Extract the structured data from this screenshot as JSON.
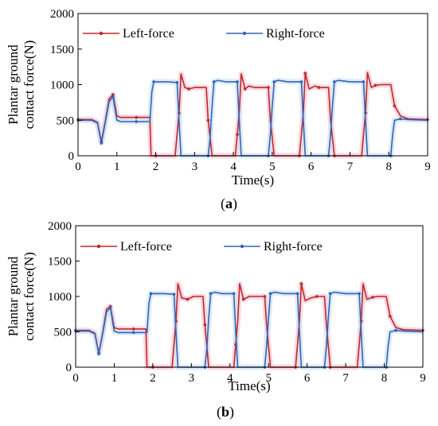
{
  "colors": {
    "left": "#c0282a",
    "right": "#3563b8",
    "shade": "#f7c9d6",
    "shade_blue": "#cfe3f5"
  },
  "chart_data": [
    {
      "type": "line",
      "panel": "a",
      "panel_label_open": "(",
      "panel_label_letter": "a",
      "panel_label_close": ")",
      "xlabel": "Time(s)",
      "ylabel_line1": "Plantar ground",
      "ylabel_line2": "contact force(N)",
      "xlim": [
        0,
        9
      ],
      "ylim": [
        0,
        2000
      ],
      "x_ticks": [
        "0",
        "1",
        "2",
        "3",
        "4",
        "5",
        "6",
        "7",
        "8",
        "9"
      ],
      "y_ticks": [
        "0",
        "500",
        "1000",
        "1500",
        "2000"
      ],
      "legend_placement": "top-left",
      "series": [
        {
          "name": "Left-force",
          "color_key": "left",
          "x": [
            0,
            0.35,
            0.5,
            0.6,
            0.7,
            0.8,
            0.9,
            1.0,
            1.1,
            1.5,
            1.85,
            1.88,
            2.0,
            2.5,
            2.55,
            2.6,
            2.65,
            2.75,
            2.85,
            3.0,
            3.3,
            3.35,
            3.45,
            4.05,
            4.1,
            4.15,
            4.2,
            4.3,
            4.4,
            4.55,
            4.9,
            4.95,
            5.05,
            5.7,
            5.75,
            5.8,
            5.85,
            5.95,
            6.1,
            6.2,
            6.45,
            6.5,
            6.6,
            7.3,
            7.35,
            7.4,
            7.45,
            7.55,
            7.65,
            7.8,
            8.05,
            8.15,
            8.3,
            8.5,
            9
          ],
          "y": [
            510,
            510,
            470,
            200,
            480,
            800,
            860,
            560,
            540,
            540,
            540,
            0,
            0,
            0,
            300,
            600,
            1150,
            960,
            940,
            960,
            960,
            500,
            0,
            0,
            300,
            600,
            1150,
            940,
            980,
            960,
            960,
            500,
            0,
            0,
            300,
            600,
            1160,
            940,
            980,
            960,
            960,
            500,
            0,
            0,
            300,
            600,
            1170,
            960,
            990,
            1000,
            1000,
            700,
            560,
            520,
            510
          ]
        },
        {
          "name": "Right-force",
          "color_key": "right",
          "x": [
            0,
            0.35,
            0.5,
            0.6,
            0.7,
            0.8,
            0.9,
            1.0,
            1.1,
            1.5,
            1.85,
            1.9,
            1.95,
            2.05,
            2.3,
            2.55,
            2.6,
            2.65,
            3.35,
            3.4,
            3.45,
            3.5,
            3.6,
            3.8,
            4.1,
            4.15,
            4.2,
            4.9,
            4.95,
            5.0,
            5.05,
            5.15,
            5.4,
            5.75,
            5.8,
            5.85,
            6.45,
            6.5,
            6.55,
            6.6,
            6.7,
            7.0,
            7.35,
            7.4,
            7.45,
            8.05,
            8.1,
            8.15,
            8.3,
            8.5,
            9
          ],
          "y": [
            500,
            500,
            460,
            180,
            460,
            760,
            830,
            500,
            480,
            480,
            480,
            900,
            1040,
            1040,
            1040,
            1030,
            500,
            0,
            0,
            250,
            700,
            1040,
            1060,
            1040,
            1040,
            500,
            0,
            0,
            300,
            700,
            1040,
            1060,
            1040,
            1040,
            500,
            0,
            0,
            300,
            700,
            1040,
            1060,
            1040,
            1040,
            500,
            0,
            0,
            300,
            500,
            520,
            510,
            500
          ]
        }
      ]
    },
    {
      "type": "line",
      "panel": "b",
      "panel_label_open": "(",
      "panel_label_letter": "b",
      "panel_label_close": ")",
      "xlabel": "Time(s)",
      "ylabel_line1": "Plantar ground",
      "ylabel_line2": "contact force(N)",
      "xlim": [
        0,
        9
      ],
      "ylim": [
        0,
        2000
      ],
      "x_ticks": [
        "0",
        "1",
        "2",
        "3",
        "4",
        "5",
        "6",
        "7",
        "8",
        "9"
      ],
      "y_ticks": [
        "0",
        "500",
        "1000",
        "1500",
        "2000"
      ],
      "legend_placement": "top-left",
      "series": [
        {
          "name": "Left-force",
          "color_key": "left",
          "x": [
            0,
            0.35,
            0.5,
            0.6,
            0.7,
            0.8,
            0.9,
            1.0,
            1.1,
            1.5,
            1.82,
            1.85,
            2.0,
            2.5,
            2.55,
            2.6,
            2.65,
            2.75,
            2.9,
            3.05,
            3.3,
            3.35,
            3.45,
            4.1,
            4.15,
            4.2,
            4.25,
            4.35,
            4.5,
            4.65,
            4.9,
            4.95,
            5.05,
            5.7,
            5.75,
            5.8,
            5.85,
            5.95,
            6.1,
            6.25,
            6.45,
            6.5,
            6.6,
            7.3,
            7.35,
            7.4,
            7.45,
            7.55,
            7.7,
            7.85,
            8.05,
            8.15,
            8.3,
            8.5,
            9
          ],
          "y": [
            520,
            520,
            480,
            200,
            480,
            820,
            860,
            560,
            540,
            540,
            540,
            0,
            0,
            0,
            320,
            650,
            1180,
            980,
            960,
            1000,
            1000,
            600,
            0,
            0,
            320,
            650,
            1180,
            960,
            1000,
            1000,
            1000,
            600,
            0,
            0,
            320,
            650,
            1180,
            940,
            980,
            1000,
            1000,
            600,
            0,
            0,
            320,
            650,
            1180,
            960,
            990,
            1000,
            1000,
            720,
            560,
            530,
            520
          ]
        },
        {
          "name": "Right-force",
          "color_key": "right",
          "x": [
            0,
            0.35,
            0.5,
            0.6,
            0.7,
            0.8,
            0.9,
            1.0,
            1.1,
            1.5,
            1.85,
            1.9,
            1.95,
            2.05,
            2.3,
            2.55,
            2.6,
            2.65,
            3.35,
            3.4,
            3.45,
            3.5,
            3.6,
            3.8,
            4.1,
            4.15,
            4.2,
            4.9,
            4.95,
            5.0,
            5.05,
            5.15,
            5.4,
            5.75,
            5.8,
            5.85,
            6.45,
            6.5,
            6.55,
            6.6,
            6.7,
            7.0,
            7.35,
            7.4,
            7.45,
            8.05,
            8.1,
            8.15,
            8.3,
            8.5,
            9
          ],
          "y": [
            510,
            510,
            470,
            190,
            470,
            780,
            840,
            510,
            490,
            490,
            490,
            900,
            1040,
            1040,
            1040,
            1030,
            500,
            0,
            0,
            250,
            700,
            1040,
            1060,
            1040,
            1040,
            500,
            0,
            0,
            300,
            700,
            1040,
            1060,
            1040,
            1040,
            500,
            0,
            0,
            300,
            700,
            1040,
            1060,
            1040,
            1040,
            500,
            0,
            0,
            300,
            500,
            520,
            510,
            500
          ]
        }
      ]
    }
  ]
}
